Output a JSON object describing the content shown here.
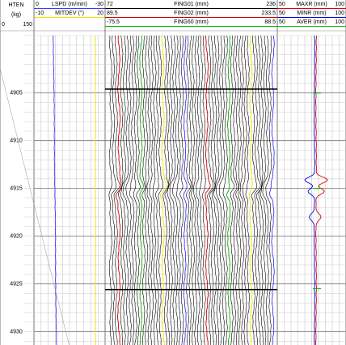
{
  "header": {
    "depth_track": {
      "name": "HTEN",
      "unit": "(kg)",
      "min": "0",
      "max": "150"
    },
    "tracks": [
      {
        "curves": [
          {
            "min": "0",
            "name": "LSPD (m/min)",
            "max": "-30",
            "color": "#3a3aff"
          },
          {
            "min": "-10",
            "name": "MITDEV (°)",
            "max": "20",
            "color": "#e8e800"
          }
        ]
      },
      {
        "curves": [
          {
            "min": "72",
            "name": "FING01 (mm)",
            "max": "236",
            "color": "#000000"
          },
          {
            "min": "89.5",
            "name": "FING02 (mm)",
            "max": "233.5",
            "color": "#d00000"
          },
          {
            "min": "-75.5",
            "name": "FING60 (mm)",
            "max": "88.5",
            "color": "#00b000"
          }
        ]
      },
      {
        "curves": [
          {
            "min": "50",
            "name": "MAXR (mm)",
            "max": "100",
            "color": "#e00000"
          },
          {
            "min": "50",
            "name": "MINR (mm)",
            "max": "100",
            "color": "#0000e0"
          },
          {
            "min": "50",
            "name": "AVER (mm)",
            "max": "100",
            "color": "#00c000"
          }
        ]
      }
    ]
  },
  "depth_axis": {
    "ylim": [
      4899,
      4931.4
    ],
    "ticks": [
      4905,
      4910,
      4915,
      4920,
      4925,
      4930
    ]
  }
}
